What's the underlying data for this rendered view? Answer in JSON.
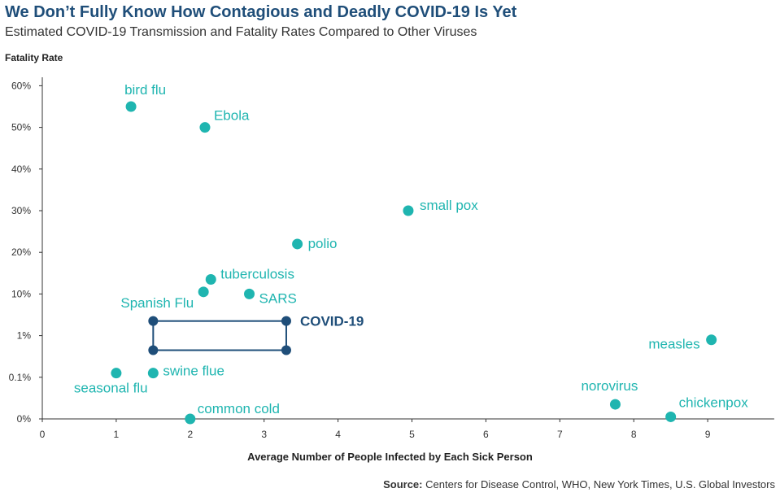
{
  "title": "We Don’t Fully Know How Contagious and Deadly COVID-19 Is Yet",
  "subtitle": "Estimated COVID-19 Transmission and Fatality Rates Compared to Other Viruses",
  "source_label": "Source:",
  "source_text": "Centers for Disease Control, WHO, New York Times, U.S. Global Investors",
  "colors": {
    "point": "#1fb5b0",
    "covid": "#1f4e79",
    "title": "#1f4e79"
  },
  "chart_data": {
    "type": "scatter",
    "title": "We Don’t Fully Know How Contagious and Deadly COVID-19 Is Yet",
    "xlabel": "Average Number of People Infected by Each Sick Person",
    "ylabel": "Fatality Rate",
    "xlim": [
      0,
      9.9
    ],
    "x_ticks": [
      "0",
      "1",
      "2",
      "3",
      "4",
      "5",
      "6",
      "7",
      "8",
      "9"
    ],
    "y_ticks": [
      "0%",
      "0.1%",
      "1%",
      "10%",
      "20%",
      "30%",
      "40%",
      "50%",
      "60%"
    ],
    "y_scale_note": "categorical fatality levels; y_level indexes y_ticks",
    "points": [
      {
        "name": "bird flu",
        "x": 1.2,
        "y_level": 7.5
      },
      {
        "name": "Ebola",
        "x": 2.2,
        "y_level": 7.0
      },
      {
        "name": "small pox",
        "x": 4.95,
        "y_level": 5.0
      },
      {
        "name": "polio",
        "x": 3.45,
        "y_level": 4.2
      },
      {
        "name": "tuberculosis",
        "x": 2.28,
        "y_level": 3.35
      },
      {
        "name": "Spanish Flu",
        "x": 2.18,
        "y_level": 3.05
      },
      {
        "name": "SARS",
        "x": 2.8,
        "y_level": 3.0
      },
      {
        "name": "measles",
        "x": 9.05,
        "y_level": 1.9
      },
      {
        "name": "swine flue",
        "x": 1.5,
        "y_level": 1.1
      },
      {
        "name": "seasonal flu",
        "x": 1.0,
        "y_level": 1.1
      },
      {
        "name": "norovirus",
        "x": 7.75,
        "y_level": 0.35
      },
      {
        "name": "chickenpox",
        "x": 8.5,
        "y_level": 0.05
      },
      {
        "name": "common cold",
        "x": 2.0,
        "y_level": 0.0
      }
    ],
    "covid": {
      "name": "COVID-19",
      "x_range": [
        1.5,
        3.3
      ],
      "y_level_range": [
        1.65,
        2.35
      ]
    }
  }
}
